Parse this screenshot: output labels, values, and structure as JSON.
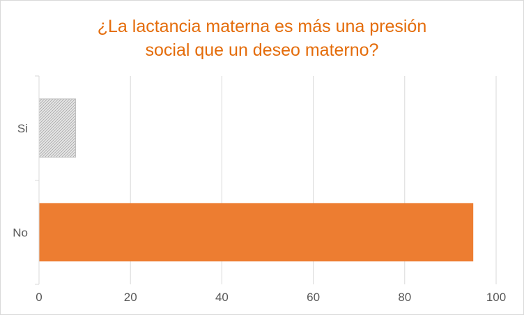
{
  "chart_data": {
    "type": "bar",
    "orientation": "horizontal",
    "title_lines": [
      "¿La lactancia materna es más una presión",
      "social que un deseo materno?"
    ],
    "categories": [
      "Si",
      "No"
    ],
    "values": [
      8,
      95
    ],
    "bar_colors": [
      "#d9d9d9",
      "#ed7d31"
    ],
    "bar_patterns": [
      "hatched",
      "solid"
    ],
    "title_color": "#e46c0a",
    "xlim": [
      0,
      100
    ],
    "xticks": [
      0,
      20,
      40,
      60,
      80,
      100
    ],
    "xtick_labels": [
      "0",
      "20",
      "40",
      "60",
      "80",
      "100"
    ],
    "grid": true,
    "xlabel": "",
    "ylabel": ""
  }
}
